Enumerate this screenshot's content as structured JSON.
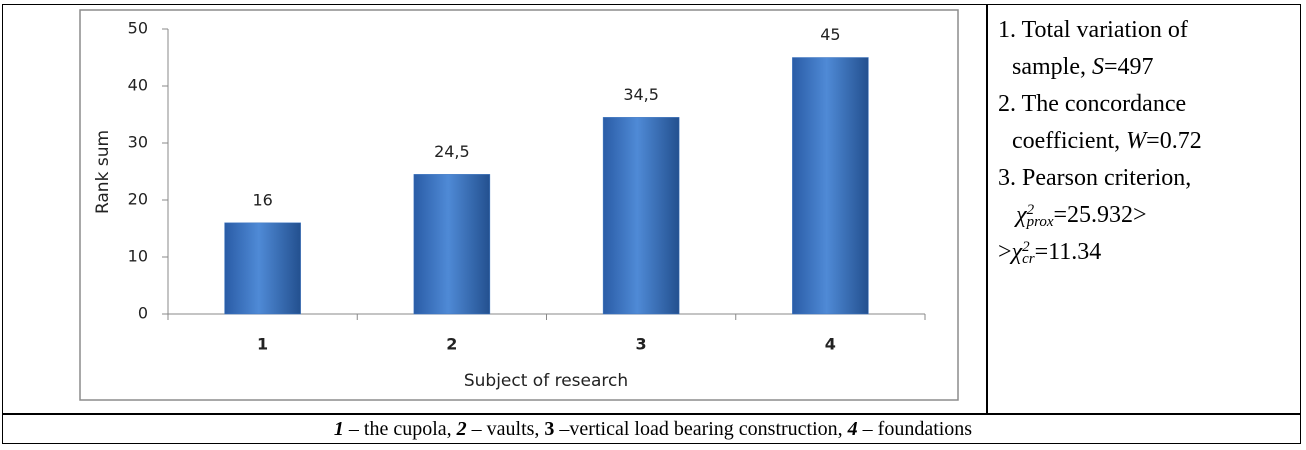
{
  "chart_data": {
    "type": "bar",
    "categories": [
      "1",
      "2",
      "3",
      "4"
    ],
    "values": [
      16,
      24.5,
      34.5,
      45
    ],
    "value_labels": [
      "16",
      "24,5",
      "34,5",
      "45"
    ],
    "color": "#3f77c2",
    "ylim": [
      0,
      50
    ],
    "yticks": [
      0,
      10,
      20,
      30,
      40,
      50
    ],
    "ylabel": "Rank sum",
    "xlabel": "Subject of research",
    "grid": false
  },
  "notes": [
    [
      "1. Total variation of",
      "sample, ",
      "S",
      "=497"
    ],
    [
      "2. The concordance",
      "coefficient, ",
      "W",
      "=0.72"
    ],
    [
      "3. Pearson criterion,",
      "χ",
      "2",
      "prox",
      "=25.932>",
      ">",
      "χ",
      "2",
      "cr",
      "=11.34"
    ]
  ],
  "caption": [
    "1",
    " – the cupola, ",
    "2",
    " – vaults, ",
    "3",
    " –vertical load bearing construction, ",
    "4",
    " – foundations"
  ]
}
